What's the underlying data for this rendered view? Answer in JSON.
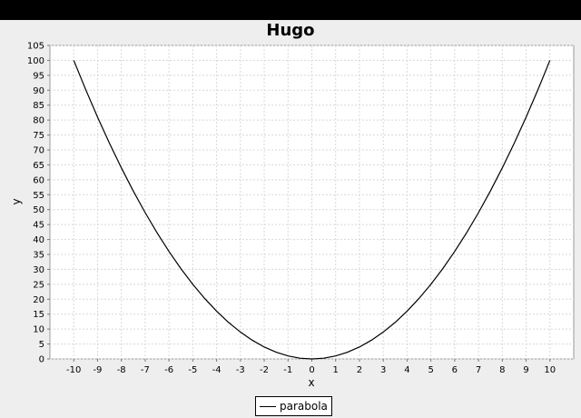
{
  "window": {
    "title_bar_color": "#000000",
    "background": "#eeeeee"
  },
  "chart_data": {
    "type": "line",
    "title": "Hugo",
    "xlabel": "x",
    "ylabel": "y",
    "xlim": [
      -11,
      11
    ],
    "ylim": [
      0,
      105
    ],
    "x_ticks": [
      -10,
      -9,
      -8,
      -7,
      -6,
      -5,
      -4,
      -3,
      -2,
      -1,
      0,
      1,
      2,
      3,
      4,
      5,
      6,
      7,
      8,
      9,
      10
    ],
    "y_ticks": [
      0,
      5,
      10,
      15,
      20,
      25,
      30,
      35,
      40,
      45,
      50,
      55,
      60,
      65,
      70,
      75,
      80,
      85,
      90,
      95,
      100,
      105
    ],
    "grid": true,
    "legend_position": "bottom-center",
    "series": [
      {
        "name": "parabola",
        "color": "#000000",
        "x": [
          -10,
          -9.5,
          -9,
          -8.5,
          -8,
          -7.5,
          -7,
          -6.5,
          -6,
          -5.5,
          -5,
          -4.5,
          -4,
          -3.5,
          -3,
          -2.5,
          -2,
          -1.5,
          -1,
          -0.5,
          0,
          0.5,
          1,
          1.5,
          2,
          2.5,
          3,
          3.5,
          4,
          4.5,
          5,
          5.5,
          6,
          6.5,
          7,
          7.5,
          8,
          8.5,
          9,
          9.5,
          10
        ],
        "y": [
          100,
          90.25,
          81,
          72.25,
          64,
          56.25,
          49,
          42.25,
          36,
          30.25,
          25,
          20.25,
          16,
          12.25,
          9,
          6.25,
          4,
          2.25,
          1,
          0.25,
          0,
          0.25,
          1,
          2.25,
          4,
          6.25,
          9,
          12.25,
          16,
          20.25,
          25,
          30.25,
          36,
          42.25,
          49,
          56.25,
          64,
          72.25,
          81,
          90.25,
          100
        ]
      }
    ]
  }
}
